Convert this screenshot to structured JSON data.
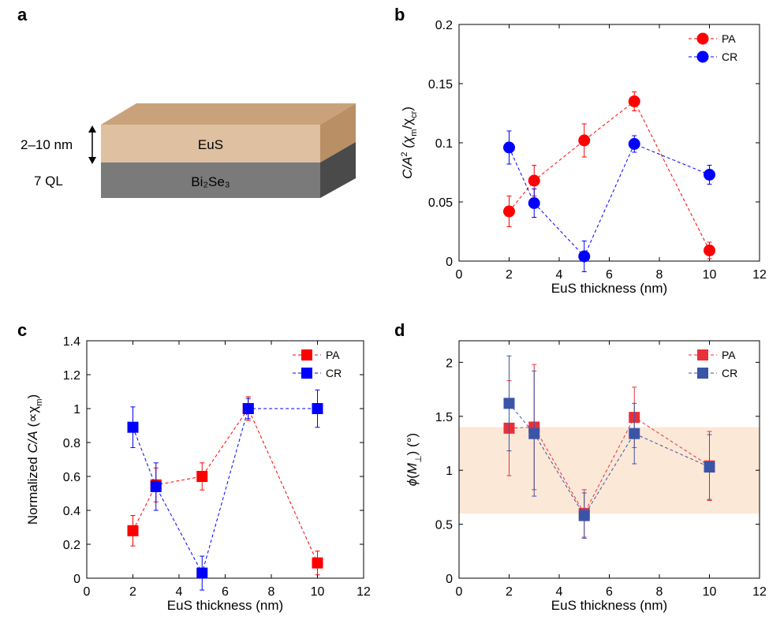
{
  "panels": {
    "a": {
      "letter": "a",
      "thickness_label": "2–10 nm",
      "layer_label": "7 QL",
      "top_layer": "EuS",
      "bottom_layer": "Bi₂Se₃"
    }
  },
  "colors": {
    "red": "#ff0000",
    "blue": "#0000ff",
    "dark_red": "#e8303a",
    "steel_blue": "#3a55a8",
    "shade": "#fce8d6"
  },
  "chart_data": [
    {
      "id": "b",
      "letter": "b",
      "type": "scatter",
      "marker": "circle",
      "xlabel": "EuS thickness (nm)",
      "ylabel_parts": [
        "C/A",
        "2",
        " (χ",
        "m",
        "/χ",
        "cr",
        ")"
      ],
      "xlim": [
        0,
        12
      ],
      "ylim": [
        0,
        0.2
      ],
      "xticks": [
        0,
        2,
        4,
        6,
        8,
        10,
        12
      ],
      "yticks": [
        0,
        0.05,
        0.1,
        0.15,
        0.2
      ],
      "ytick_labels": [
        "0",
        "0.05",
        "0.1",
        "0.15",
        "0.2"
      ],
      "legend_position": "top-right",
      "series": [
        {
          "name": "PA",
          "color": "#ff0000",
          "x": [
            2,
            3,
            5,
            7,
            10
          ],
          "y": [
            0.042,
            0.068,
            0.102,
            0.135,
            0.009
          ],
          "err": [
            0.013,
            0.013,
            0.014,
            0.008,
            0.007
          ]
        },
        {
          "name": "CR",
          "color": "#0000ff",
          "x": [
            2,
            3,
            5,
            7,
            10
          ],
          "y": [
            0.096,
            0.049,
            0.004,
            0.099,
            0.073
          ],
          "err": [
            0.014,
            0.012,
            0.013,
            0.007,
            0.008
          ]
        }
      ]
    },
    {
      "id": "c",
      "letter": "c",
      "type": "scatter",
      "marker": "square",
      "xlabel": "EuS thickness (nm)",
      "ylabel_parts": [
        "Normalized ",
        "C/A",
        " (∝χ",
        "m",
        ")"
      ],
      "xlim": [
        0,
        12
      ],
      "ylim": [
        0,
        1.4
      ],
      "xticks": [
        0,
        2,
        4,
        6,
        8,
        10,
        12
      ],
      "yticks": [
        0,
        0.2,
        0.4,
        0.6,
        0.8,
        1,
        1.2,
        1.4
      ],
      "ytick_labels": [
        "0",
        "0.2",
        "0.4",
        "0.6",
        "0.8",
        "1",
        "1.2",
        "1.4"
      ],
      "legend_position": "top-right",
      "series": [
        {
          "name": "PA",
          "color": "#ff0000",
          "x": [
            2,
            3,
            5,
            7,
            10
          ],
          "y": [
            0.28,
            0.55,
            0.6,
            1.0,
            0.09
          ],
          "err": [
            0.09,
            0.1,
            0.08,
            0.07,
            0.07
          ]
        },
        {
          "name": "CR",
          "color": "#0000ff",
          "x": [
            2,
            3,
            5,
            7,
            10
          ],
          "y": [
            0.89,
            0.54,
            0.03,
            1.0,
            1.0
          ],
          "err": [
            0.12,
            0.14,
            0.1,
            0.06,
            0.11
          ]
        }
      ]
    },
    {
      "id": "d",
      "letter": "d",
      "type": "scatter",
      "marker": "square",
      "xlabel": "EuS thickness (nm)",
      "ylabel_parts": [
        "ϕ",
        "(",
        "M",
        "⊥",
        ") (°)"
      ],
      "xlim": [
        0,
        12
      ],
      "ylim": [
        0,
        2.2
      ],
      "xticks": [
        0,
        2,
        4,
        6,
        8,
        10,
        12
      ],
      "yticks": [
        0,
        0.5,
        1,
        1.5,
        2
      ],
      "ytick_labels": [
        "0",
        "0.5",
        "1",
        "1.5",
        "2"
      ],
      "legend_position": "top-right",
      "shaded_band": [
        0.6,
        1.4
      ],
      "series": [
        {
          "name": "PA",
          "color": "#e8303a",
          "x": [
            2,
            3,
            5,
            7,
            10
          ],
          "y": [
            1.39,
            1.4,
            0.6,
            1.49,
            1.04
          ],
          "err": [
            0.44,
            0.58,
            0.22,
            0.28,
            0.32
          ]
        },
        {
          "name": "CR",
          "color": "#3a55a8",
          "x": [
            2,
            3,
            5,
            7,
            10
          ],
          "y": [
            1.62,
            1.34,
            0.58,
            1.34,
            1.03
          ],
          "err": [
            0.44,
            0.58,
            0.21,
            0.28,
            0.3
          ]
        }
      ]
    }
  ]
}
